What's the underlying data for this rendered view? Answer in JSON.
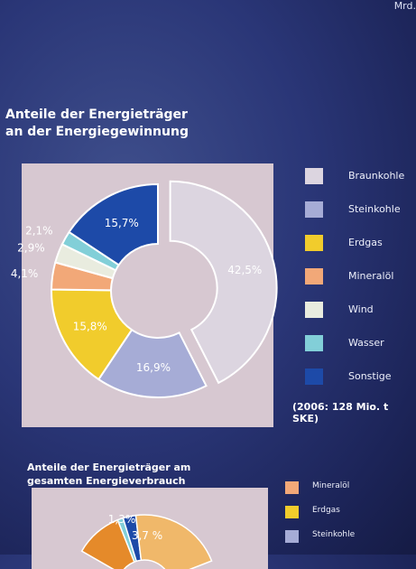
{
  "top_fragment": "Mrd.",
  "chart_data": [
    {
      "type": "pie",
      "title": "Anteile der Energieträger an der Energiegewinnung",
      "unit": "%",
      "note": "(2006: 128 Mio. t SKE)",
      "slices": [
        {
          "name": "Braunkohle",
          "value": 42.5,
          "label": "42,5%",
          "color": "#dcd5e0"
        },
        {
          "name": "Steinkohle",
          "value": 16.9,
          "label": "16,9%",
          "color": "#a6acd6"
        },
        {
          "name": "Erdgas",
          "value": 15.8,
          "label": "15,8%",
          "color": "#f1cc2c"
        },
        {
          "name": "Mineralöl",
          "value": 4.1,
          "label": "4,1%",
          "color": "#f2a878"
        },
        {
          "name": "Wind",
          "value": 2.9,
          "label": "2,9%",
          "color": "#e9ecdf"
        },
        {
          "name": "Wasser",
          "value": 2.1,
          "label": "2,1%",
          "color": "#82cfd8"
        },
        {
          "name": "Sonstige",
          "value": 15.7,
          "label": "15,7%",
          "color": "#1d4aa8"
        }
      ]
    },
    {
      "type": "pie",
      "title": "Anteile der Energieträger am gesamten Energieverbrauch",
      "unit": "%",
      "legend": [
        {
          "name": "Mineralöl",
          "color": "#f2a878"
        },
        {
          "name": "Erdgas",
          "color": "#f1cc2c"
        },
        {
          "name": "Steinkohle",
          "color": "#a6acd6"
        }
      ],
      "visible_labels": [
        "1,3%",
        "3,7 %"
      ]
    }
  ]
}
